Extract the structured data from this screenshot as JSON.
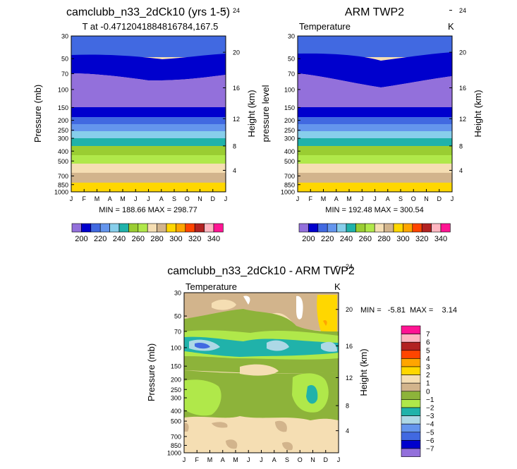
{
  "months": [
    "J",
    "F",
    "M",
    "A",
    "M",
    "J",
    "J",
    "A",
    "S",
    "O",
    "N",
    "D",
    "J"
  ],
  "pressure_ticks": [
    "30",
    "50",
    "70",
    "100",
    "150",
    "200",
    "250",
    "300",
    "400",
    "500",
    "700",
    "850",
    "1000"
  ],
  "height_ticks": [
    "24",
    "20",
    "16",
    "12",
    "8",
    "4"
  ],
  "height_km": [
    24,
    20,
    16,
    12,
    8,
    4
  ],
  "pressure_values": [
    30,
    50,
    70,
    100,
    150,
    200,
    250,
    300,
    400,
    500,
    700,
    850,
    1000
  ],
  "top_colorbar": {
    "colors": [
      "#9370db",
      "#0000cd",
      "#4169e1",
      "#6495ed",
      "#87ceeb",
      "#20b2aa",
      "#9acd32",
      "#b0e84a",
      "#f5deb3",
      "#d2b48c",
      "#ffd700",
      "#ffa500",
      "#ff4500",
      "#b22222",
      "#ffb6c1",
      "#ff1493"
    ],
    "labels": [
      "200",
      "220",
      "240",
      "260",
      "280",
      "300",
      "320",
      "340"
    ]
  },
  "diff_colorbar": {
    "colors": [
      "#ff1493",
      "#ffb6c1",
      "#b22222",
      "#ff4500",
      "#ffa500",
      "#ffd700",
      "#f5deb3",
      "#d2b48c",
      "#8db33a",
      "#b0e84a",
      "#20b2aa",
      "#add8e6",
      "#6495ed",
      "#4169e1",
      "#0000cd",
      "#9370db"
    ],
    "labels": [
      "7",
      "6",
      "5",
      "4",
      "3",
      "2",
      "1",
      "0",
      "−1",
      "−2",
      "−3",
      "−4",
      "−5",
      "−6",
      "−7"
    ]
  },
  "chart_data": [
    {
      "type": "heatmap",
      "title": "camclubb_n33_2dCk10 (yrs 1-5)",
      "subtitle": "T at -0.4712041884816784,167.5",
      "xlabel": "",
      "ylabel": "Pressure (mb)",
      "ylabel_right": "Height (km)",
      "stats_label": "MIN = 188.66  MAX = 298.77",
      "min": 188.66,
      "max": 298.77,
      "ylim": [
        1000,
        30
      ]
    },
    {
      "type": "heatmap",
      "title": "ARM TWP2",
      "field_label": "Temperature",
      "units": "K",
      "ylabel": "pressure level",
      "ylabel_right": "Height (km)",
      "stats_label": "MIN = 192.48  MAX = 300.54",
      "min": 192.48,
      "max": 300.54,
      "ylim": [
        1000,
        30
      ]
    },
    {
      "type": "heatmap",
      "title": "camclubb_n33_2dCk10 - ARM TWP2",
      "field_label": "Temperature",
      "units": "K",
      "ylabel": "Pressure (mb)",
      "ylabel_right": "Height (km)",
      "stats_label": "MIN =   -5.81  MAX =    3.14",
      "min": -5.81,
      "max": 3.14,
      "ylim": [
        1000,
        30
      ]
    }
  ]
}
